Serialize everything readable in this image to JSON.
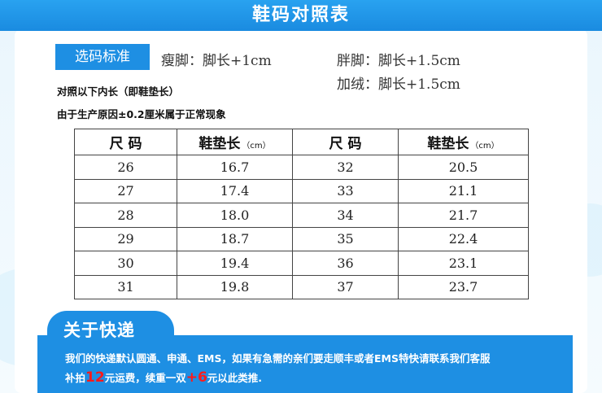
{
  "title": "鞋码对照表",
  "standard": {
    "label": "选码标准",
    "thin": "瘦脚：脚长+1cm",
    "wide": "胖脚：脚长+1.5cm",
    "plush": "加绒：脚长+1.5cm"
  },
  "notes": [
    "对照以下内长（即鞋垫长）",
    "由于生产原因±0.2厘米属于正常现象"
  ],
  "table": {
    "headers": {
      "size": "尺 码",
      "insole": "鞋垫长",
      "unit": "（cm）"
    },
    "rows": [
      {
        "s1": "26",
        "l1": "16.7",
        "s2": "32",
        "l2": "20.5"
      },
      {
        "s1": "27",
        "l1": "17.4",
        "s2": "33",
        "l2": "21.1"
      },
      {
        "s1": "28",
        "l1": "18.0",
        "s2": "34",
        "l2": "21.7"
      },
      {
        "s1": "29",
        "l1": "18.7",
        "s2": "35",
        "l2": "22.4"
      },
      {
        "s1": "30",
        "l1": "19.4",
        "s2": "36",
        "l2": "23.1"
      },
      {
        "s1": "31",
        "l1": "19.8",
        "s2": "37",
        "l2": "23.7"
      }
    ]
  },
  "shipping": {
    "title": "关于快递",
    "line1": "我们的快递默认圆通、申通、EMS，如果有急需的亲们要走顺丰或者EMS特快请联系我们客服",
    "line2_a": "补拍",
    "line2_num1": "12",
    "line2_b": "元运费，续重一双",
    "line2_num2": "+6",
    "line2_c": "元以此类推."
  }
}
